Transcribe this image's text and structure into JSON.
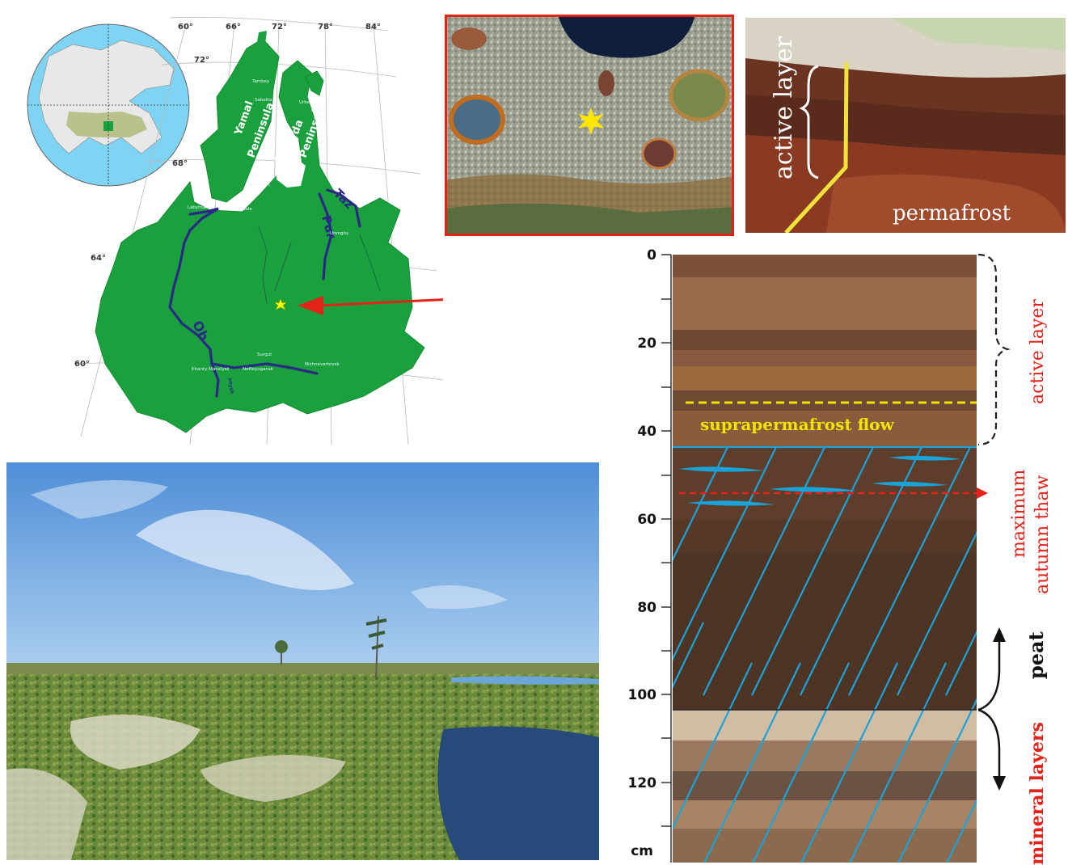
{
  "map": {
    "longitudes": [
      "60°",
      "66°",
      "72°",
      "78°",
      "84°"
    ],
    "latitudes": [
      "72°",
      "68°",
      "64°",
      "60°"
    ],
    "peninsulas": [
      {
        "line1": "Yamal",
        "line2": "Peninsula"
      },
      {
        "line1": "Gyda",
        "line2": "Peninsula"
      }
    ],
    "rivers": [
      "Ob",
      "Pur",
      "Taz",
      "Irtysh"
    ],
    "towns": [
      "Tambey",
      "Sabetta",
      "Urbei",
      "Gyda",
      "Novy Port",
      "Labytnangi",
      "Yar-Sale",
      "Urengoy",
      "Surgut",
      "Khanty-Mansiysk",
      "Nefteyugansk",
      "Nizhnevartovsk"
    ]
  },
  "photo_active_layer": {
    "label_active": "active layer",
    "label_permafrost": "permafrost"
  },
  "profile": {
    "depth_ticks": [
      "0",
      "20",
      "40",
      "60",
      "80",
      "100",
      "120"
    ],
    "depth_unit": "cm",
    "suprapermafrost_label": "suprapermafrost flow",
    "active_layer_label": "active layer",
    "max_thaw_line1": "maximum",
    "max_thaw_line2": "autumn thaw",
    "peat_label": "peat",
    "mineral_label": "mineral layers"
  },
  "colors": {
    "map_land": "#1aa03d",
    "river": "#2a2a86",
    "arrow_red": "#e2231a",
    "ice_blue": "#19a3d9",
    "peat_dark": "#4e3424",
    "flow_yellow": "#f5e200",
    "label_red": "#e2231a"
  }
}
